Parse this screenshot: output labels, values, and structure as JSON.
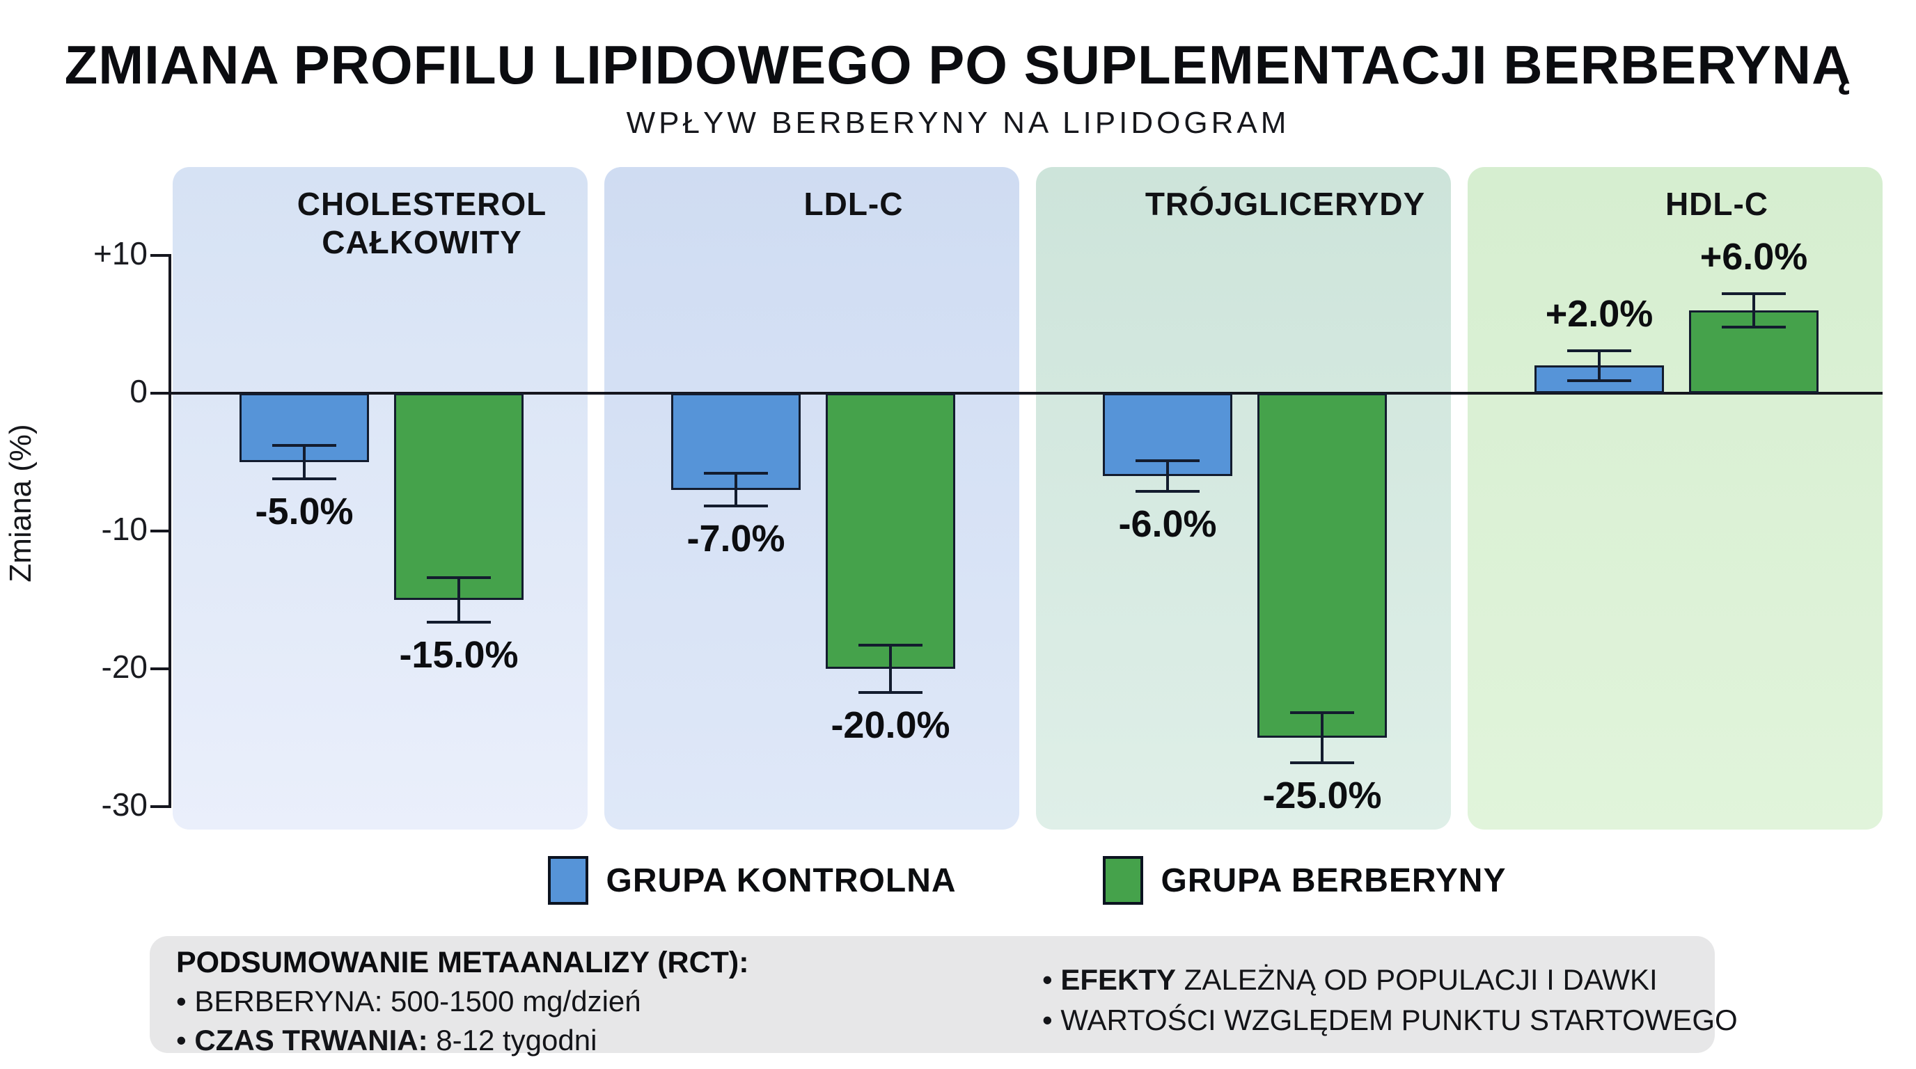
{
  "chart_data": {
    "type": "bar",
    "title": "ZMIANA PROFILU LIPIDOWEGO PO SUPLEMENTACJI BERBERYNĄ",
    "subtitle": "WPŁYW BERBERYNY NA LIPIDOGRAM",
    "ylabel": "Zmiana (%)",
    "ylim": [
      -32,
      16
    ],
    "grid": false,
    "legend_position": "bottom",
    "yticks": [
      {
        "value": 10,
        "label": "+10"
      },
      {
        "value": 0,
        "label": "0"
      },
      {
        "value": -10,
        "label": "-10"
      },
      {
        "value": -20,
        "label": "-20"
      },
      {
        "value": -30,
        "label": "-30"
      }
    ],
    "categories": [
      "CHOLESTEROL CAŁKOWITY",
      "LDL-C",
      "TRÓJGLICERYDY",
      "HDL-C"
    ],
    "panel_backgrounds": [
      {
        "top": "#d6e2f4",
        "bottom": "#eaeffb"
      },
      {
        "top": "#cfdcf2",
        "bottom": "#dfe8f8"
      },
      {
        "top": "#cde4da",
        "bottom": "#dfefe8"
      },
      {
        "top": "#d6eed0",
        "bottom": "#e1f4db"
      }
    ],
    "series": [
      {
        "name": "GRUPA KONTROLNA",
        "color": "#5694d8",
        "values": [
          -5.0,
          -7.0,
          -6.0,
          2.0
        ],
        "labels": [
          "-5.0%",
          "-7.0%",
          "-6.0%",
          "+2.0%"
        ],
        "errors": [
          1.2,
          1.2,
          1.1,
          1.1
        ]
      },
      {
        "name": "GRUPA BERBERYNY",
        "color": "#45a24b",
        "values": [
          -15.0,
          -20.0,
          -25.0,
          6.0
        ],
        "labels": [
          "-15.0%",
          "-20.0%",
          "-25.0%",
          "+6.0%"
        ],
        "errors": [
          1.6,
          1.7,
          1.8,
          1.2
        ]
      }
    ]
  },
  "footer": {
    "heading": "PODSUMOWANIE METAANALIZY (RCT):",
    "left_items": [
      [
        {
          "text": "• BERBERYNA: 500-1500 mg/dzień",
          "bold": false
        }
      ],
      [
        {
          "text": "• ",
          "bold": false
        },
        {
          "text": "CZAS TRWANIA:",
          "bold": true
        },
        {
          "text": " 8-12 tygodni",
          "bold": false
        }
      ]
    ],
    "right_items": [
      [
        {
          "text": "• ",
          "bold": false
        },
        {
          "text": "EFEKTY",
          "bold": true
        },
        {
          "text": " ZALEŻNĄ OD POPULACJI I DAWKI",
          "bold": false
        }
      ],
      [
        {
          "text": "• WARTOŚCI WZGLĘDEM PUNKTU STARTOWEGO",
          "bold": false
        }
      ]
    ]
  }
}
